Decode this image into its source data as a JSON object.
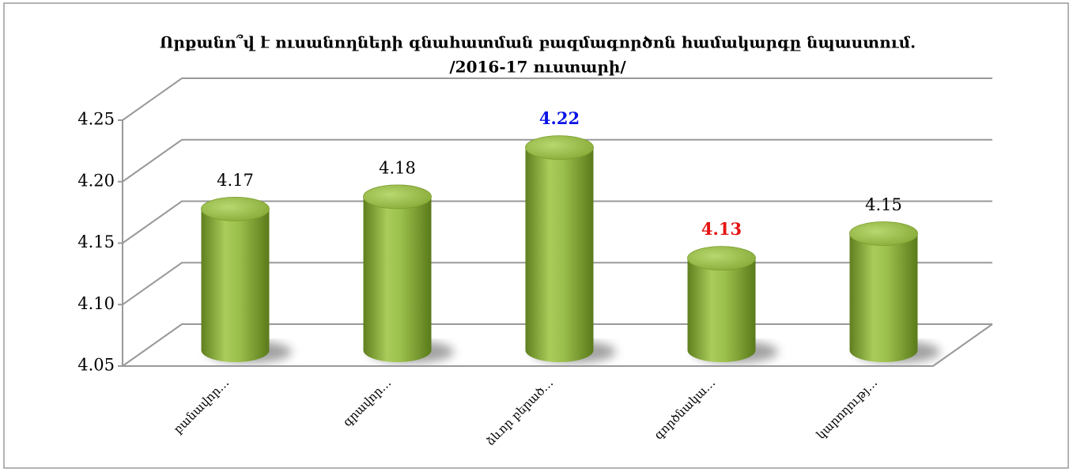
{
  "chart_data": {
    "type": "bar3d",
    "title": [
      "Որքանո՞վ է ուսանողների գնահատման  բազմագործոն համակարգը նպաստում.",
      "/2016-17 ուստարի/"
    ],
    "categories": [
      "բանավոր…",
      "գրավոր…",
      "ձևոր բերած…",
      "գործնակա…",
      "կարողությ…"
    ],
    "values": [
      4.17,
      4.18,
      4.22,
      4.13,
      4.15
    ],
    "color": "#8fb33c",
    "value_label_colors": [
      "#000000",
      "#000000",
      "#0a14e6",
      "#e61414",
      "#000000"
    ],
    "ylim": [
      4.05,
      4.25
    ],
    "yticks": [
      4.05,
      {
        "value": 4.1,
        "label": "4.10"
      },
      4.15,
      {
        "value": 4.2,
        "label": "4.20"
      },
      4.25
    ],
    "grid": true
  }
}
